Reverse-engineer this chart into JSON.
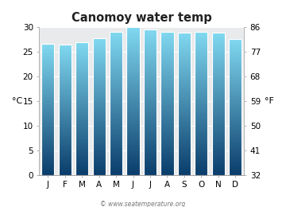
{
  "title": "Canomoy water temp",
  "months": [
    "J",
    "F",
    "M",
    "A",
    "M",
    "J",
    "J",
    "A",
    "S",
    "O",
    "N",
    "D"
  ],
  "values_c": [
    26.6,
    26.5,
    26.9,
    27.8,
    29.0,
    30.0,
    29.5,
    29.1,
    28.9,
    29.0,
    28.8,
    27.6
  ],
  "ylim_c": [
    0,
    30
  ],
  "yticks_c": [
    0,
    5,
    10,
    15,
    20,
    25,
    30
  ],
  "yticks_f": [
    32,
    41,
    50,
    59,
    68,
    77,
    86
  ],
  "ylabel_left": "°C",
  "ylabel_right": "°F",
  "bar_color_top": "#80d8f0",
  "bar_color_bottom": "#0a3d6b",
  "figure_bg_color": "#ffffff",
  "plot_bg_color": "#e8eaec",
  "title_fontsize": 10.5,
  "axis_fontsize": 7.5,
  "label_fontsize": 8,
  "watermark": "© www.seatemperature.org"
}
